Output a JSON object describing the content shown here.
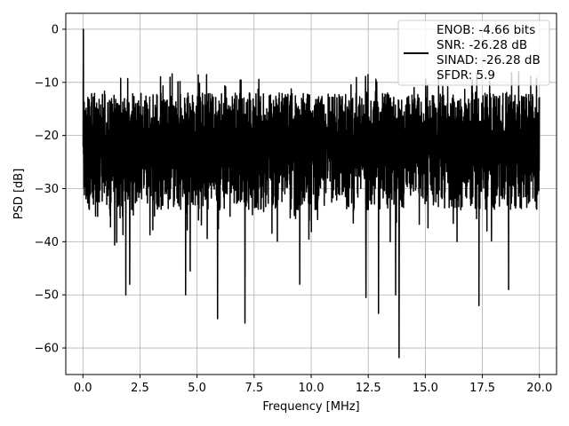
{
  "chart_data": {
    "type": "line",
    "xlabel": "Frequency [MHz]",
    "ylabel": "PSD [dB]",
    "xlim": [
      -0.75,
      20.75
    ],
    "ylim": [
      -65,
      3
    ],
    "x_ticks": [
      0.0,
      2.5,
      5.0,
      7.5,
      10.0,
      12.5,
      15.0,
      17.5,
      20.0
    ],
    "x_tick_labels": [
      "0.0",
      "2.5",
      "5.0",
      "7.5",
      "10.0",
      "12.5",
      "15.0",
      "17.5",
      "20.0"
    ],
    "y_ticks": [
      0,
      -10,
      -20,
      -30,
      -40,
      -50,
      -60
    ],
    "y_tick_labels": [
      "0",
      "−10",
      "−20",
      "−30",
      "−40",
      "−50",
      "−60"
    ],
    "grid": true,
    "legend_position": "top-right",
    "series": [
      {
        "name": "ENOB: -4.66 bits\nSNR: -26.28 dB\nSINAD: -26.28 dB\nSFDR: 5.9",
        "color": "#000000",
        "description_points": {
          "x": [
            0.0,
            0.02,
            1.88,
            2.05,
            4.5,
            4.7,
            5.9,
            7.1,
            9.5,
            12.4,
            12.95,
            13.7,
            13.85,
            17.35,
            18.65
          ],
          "y": [
            -22,
            0,
            -50,
            -48,
            -50,
            -45.5,
            -54.5,
            -55.3,
            -48,
            -50.5,
            -53.5,
            -50,
            -61.8,
            -52,
            -49
          ]
        },
        "noise_floor_band": [
          -34,
          -8
        ],
        "x_range": [
          0.0,
          20.0
        ]
      }
    ],
    "legend_lines": [
      "ENOB: -4.66 bits",
      "SNR: -26.28 dB",
      "SINAD: -26.28 dB",
      "SFDR: 5.9"
    ]
  },
  "colors": {
    "line": "#000000",
    "grid": "#b0b0b0",
    "background": "#ffffff",
    "axes": "#000000"
  }
}
